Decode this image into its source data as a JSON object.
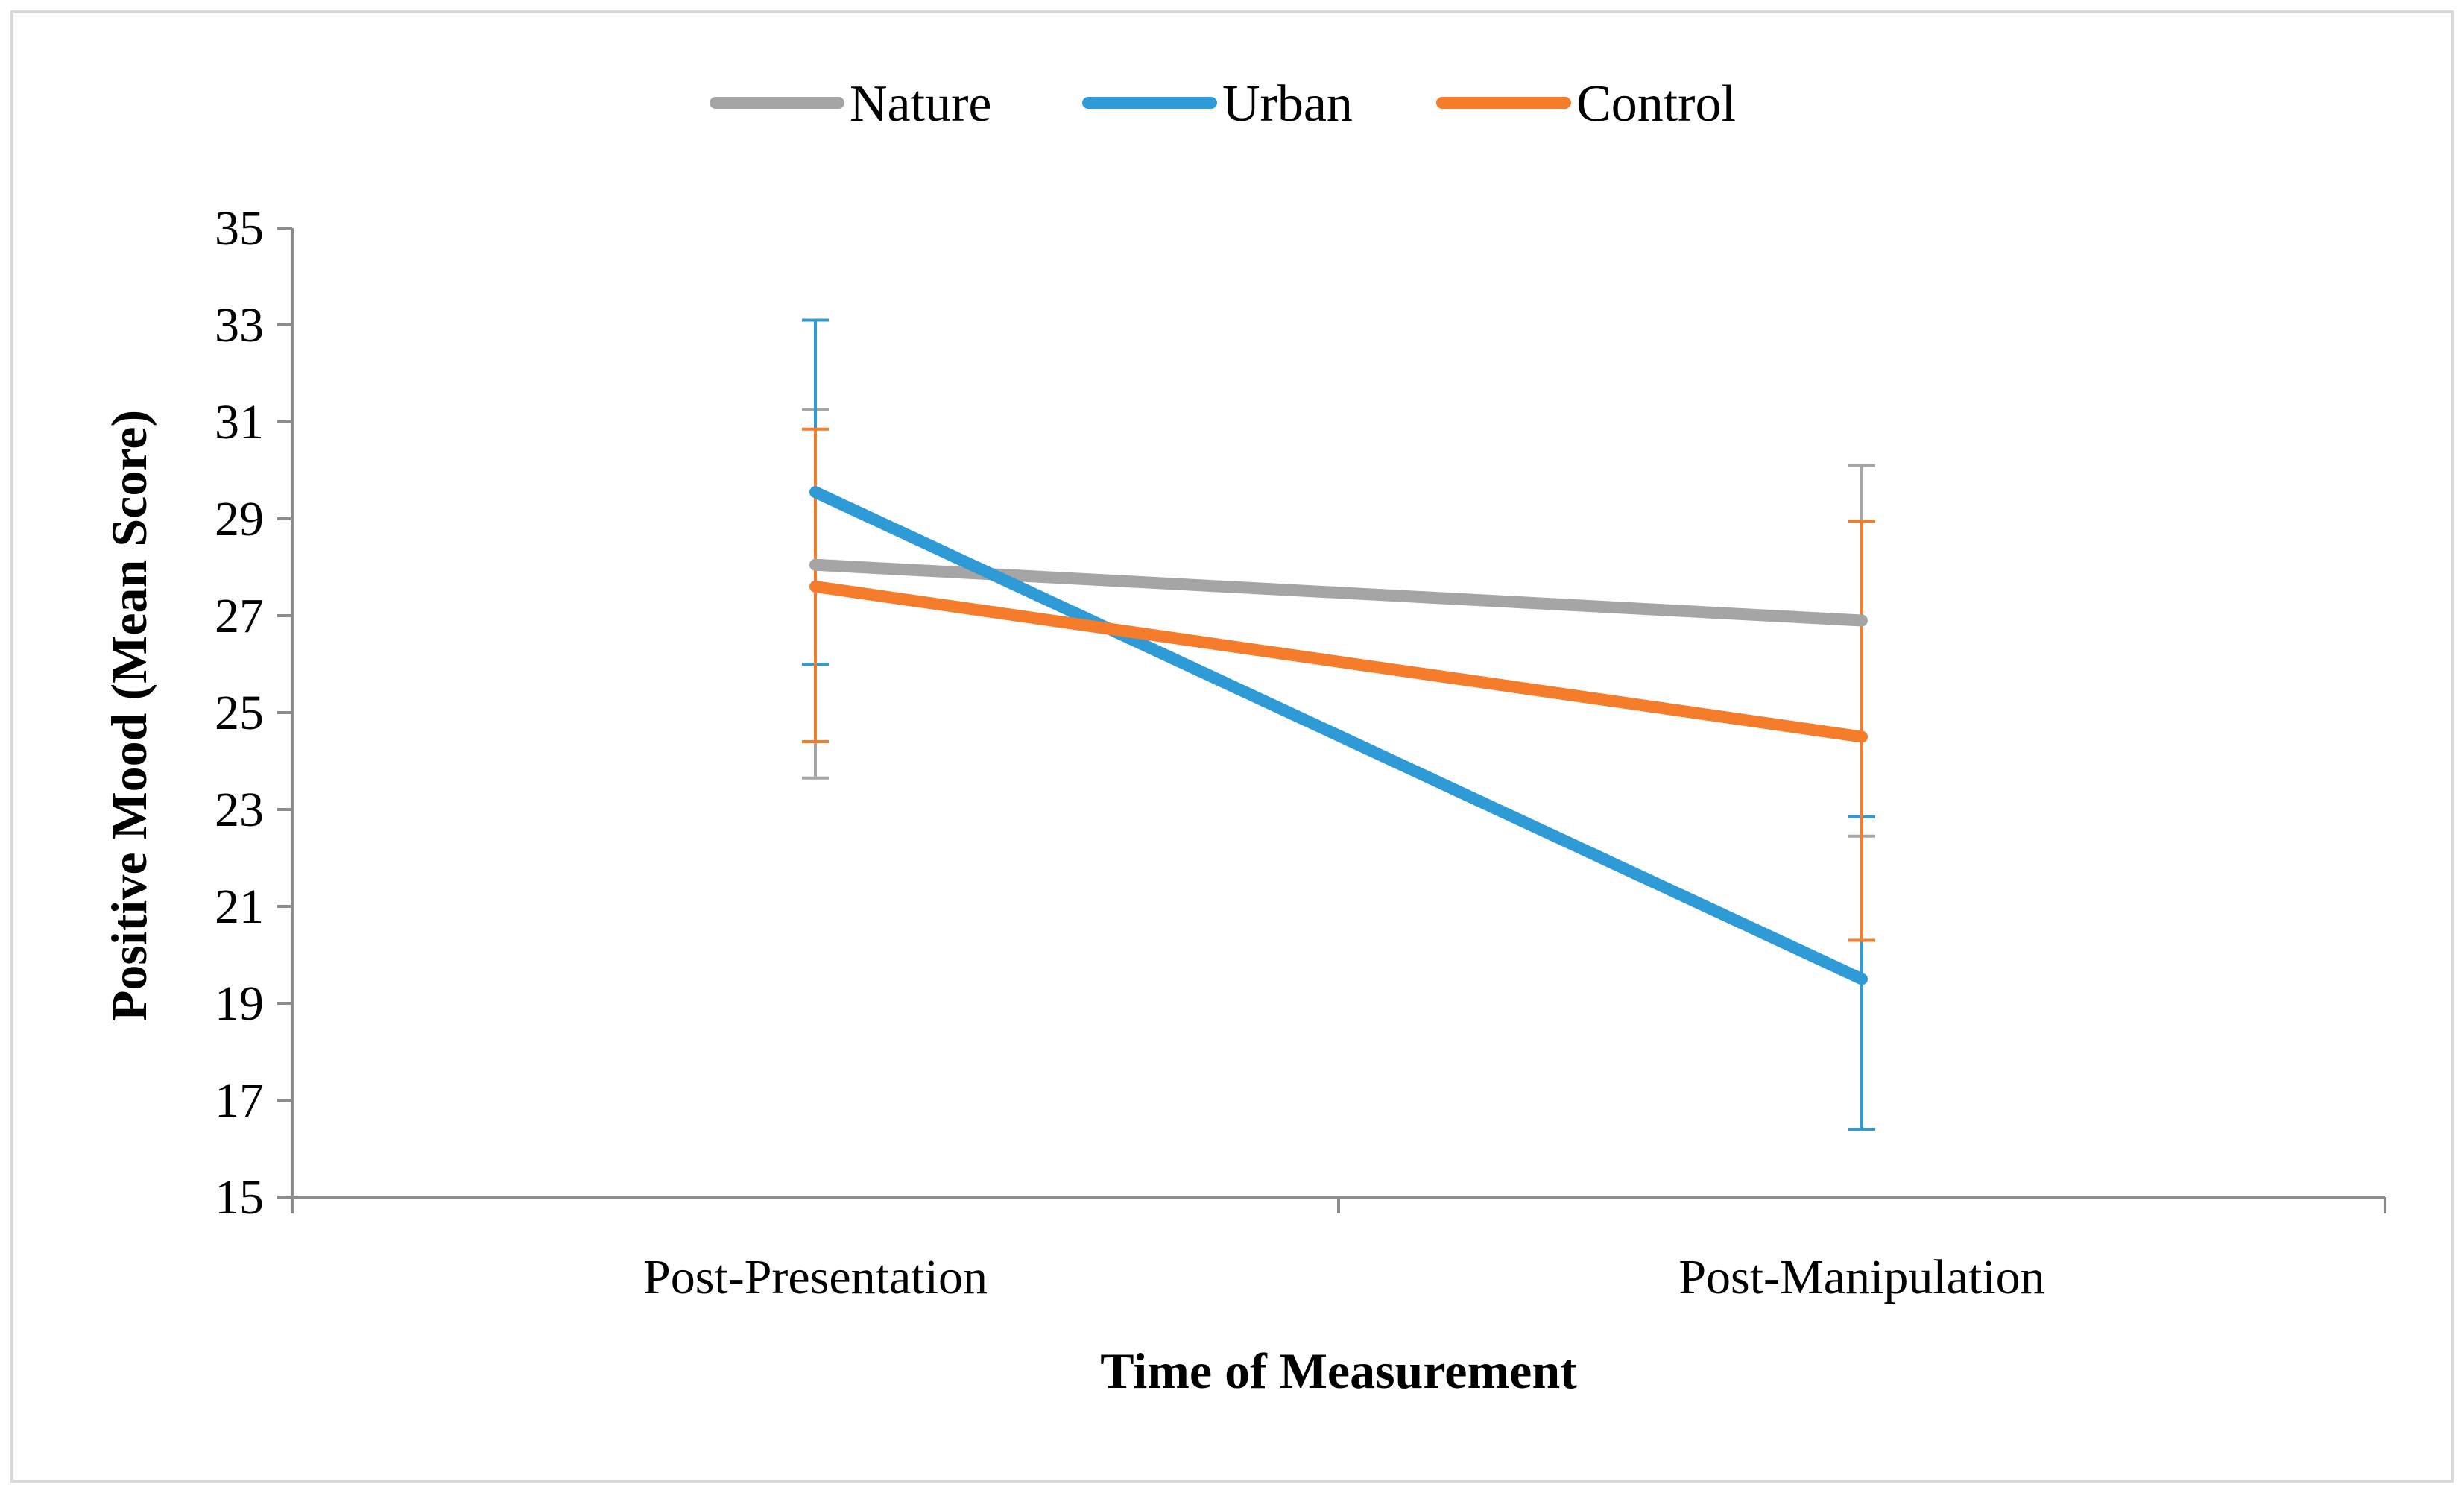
{
  "chart_data": {
    "type": "line",
    "title": "",
    "xlabel": "Time of Measurement",
    "ylabel": "Positive Mood (Mean Score)",
    "categories": [
      "Post-Presentation",
      "Post-Manipulation"
    ],
    "ylim": [
      15,
      35
    ],
    "yticks": [
      15,
      17,
      19,
      21,
      23,
      25,
      27,
      29,
      31,
      33,
      35
    ],
    "legend_position": "top-center",
    "grid": false,
    "series": [
      {
        "name": "Nature",
        "color": "#A5A5A5",
        "values": [
          28.05,
          26.9
        ],
        "error_low": [
          23.65,
          22.45
        ],
        "error_high": [
          31.25,
          30.1
        ]
      },
      {
        "name": "Urban",
        "color": "#2E9BD6",
        "values": [
          29.55,
          19.5
        ],
        "error_low": [
          26.0,
          16.4
        ],
        "error_high": [
          33.1,
          22.85
        ]
      },
      {
        "name": "Control",
        "color": "#F47C2A",
        "values": [
          27.6,
          24.5
        ],
        "error_low": [
          24.4,
          20.3
        ],
        "error_high": [
          30.85,
          28.95
        ]
      }
    ]
  }
}
